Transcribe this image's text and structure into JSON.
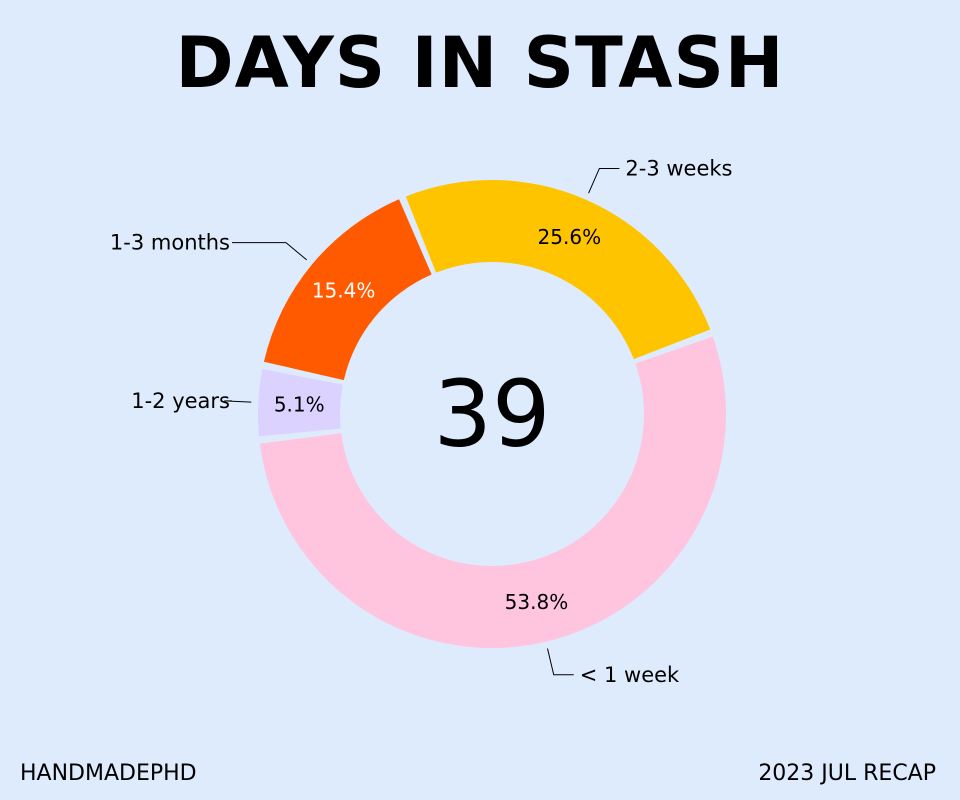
{
  "header": {
    "title": "DAYS IN STASH"
  },
  "footer": {
    "left": "HANDMADEPHD",
    "right": "2023 JUL RECAP"
  },
  "chart_data": {
    "type": "pie",
    "title": "DAYS IN STASH",
    "center_label": "39",
    "categories": [
      "1-3 months",
      "2-3 weeks",
      "< 1 week",
      "1-2 years"
    ],
    "values": [
      15.4,
      25.6,
      53.8,
      5.1
    ],
    "value_labels": [
      "15.4%",
      "25.6%",
      "53.8%",
      "5.1%"
    ],
    "colors": [
      "#ff5a00",
      "#ffc400",
      "#ffc4de",
      "#dcd2ff"
    ],
    "background": "#deebfc",
    "legend": "none"
  }
}
